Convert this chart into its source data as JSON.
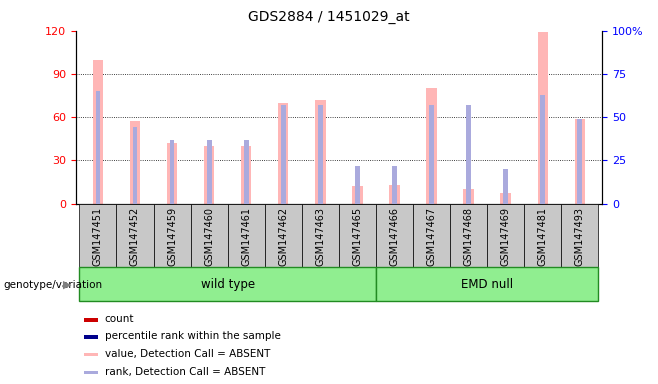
{
  "title": "GDS2884 / 1451029_at",
  "samples": [
    "GSM147451",
    "GSM147452",
    "GSM147459",
    "GSM147460",
    "GSM147461",
    "GSM147462",
    "GSM147463",
    "GSM147465",
    "GSM147466",
    "GSM147467",
    "GSM147468",
    "GSM147469",
    "GSM147481",
    "GSM147493"
  ],
  "wt_count": 8,
  "emd_count": 6,
  "left_ylim": [
    0,
    120
  ],
  "right_ylim": [
    0,
    100
  ],
  "left_yticks": [
    0,
    30,
    60,
    90,
    120
  ],
  "right_yticks": [
    0,
    25,
    50,
    75,
    100
  ],
  "right_yticklabels": [
    "0",
    "25",
    "50",
    "75",
    "100%"
  ],
  "pink_bar_values": [
    100,
    57,
    42,
    40,
    40,
    70,
    72,
    12,
    13,
    80,
    10,
    7,
    119,
    59
  ],
  "light_blue_rank_values": [
    65,
    44,
    37,
    37,
    37,
    57,
    57,
    22,
    22,
    57,
    57,
    20,
    63,
    49
  ],
  "pink_color": "#FFB6B6",
  "light_blue_color": "#AAAADD",
  "bg_color": "#C8C8C8",
  "green_fill": "#90EE90",
  "green_border": "#228B22",
  "legend_items": [
    {
      "color": "#CC0000",
      "label": "count"
    },
    {
      "color": "#00008B",
      "label": "percentile rank within the sample"
    },
    {
      "color": "#FFB6B6",
      "label": "value, Detection Call = ABSENT"
    },
    {
      "color": "#AAAADD",
      "label": "rank, Detection Call = ABSENT"
    }
  ]
}
